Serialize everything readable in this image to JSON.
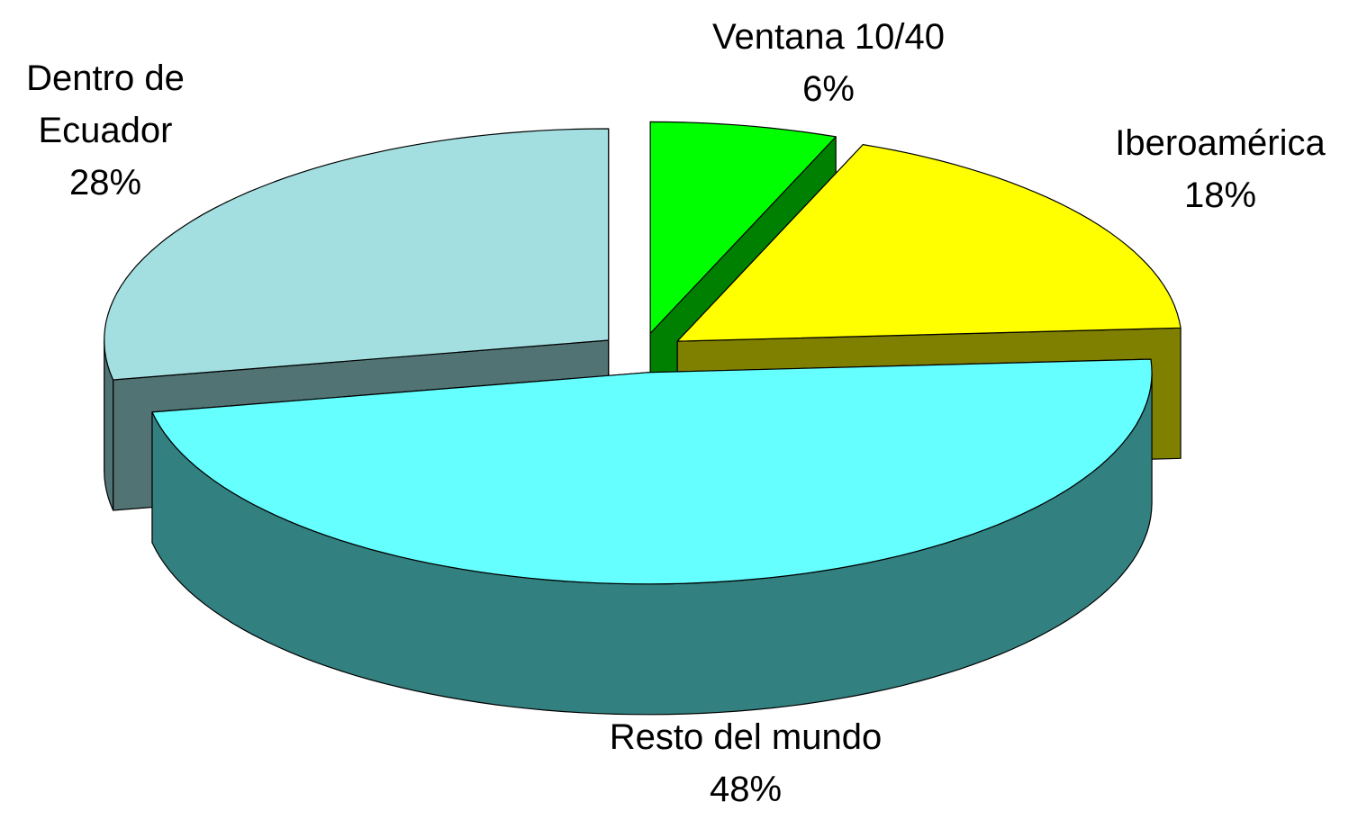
{
  "chart_data": {
    "type": "pie3d",
    "categories": [
      "Ventana 10/40",
      "Iberoamérica",
      "Resto del mundo",
      "Dentro de Ecuador"
    ],
    "values": [
      6,
      18,
      48,
      28
    ],
    "value_labels": [
      "6%",
      "18%",
      "48%",
      "28%"
    ],
    "colors": [
      "#00ff00",
      "#ffff00",
      "#66ffff",
      "#a3dfe0"
    ],
    "side_colors": [
      "#008000",
      "#808000",
      "#338080",
      "#527373"
    ]
  }
}
